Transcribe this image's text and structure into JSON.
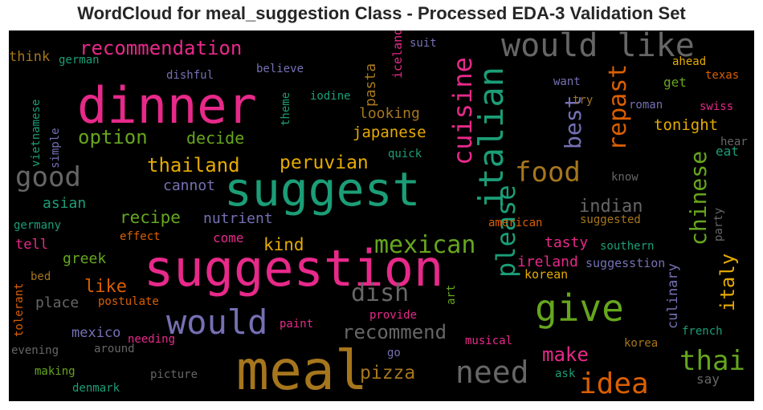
{
  "chart_data": {
    "type": "wordcloud",
    "title": "WordCloud for meal_suggestion Class - Processed EDA-3 Validation Set",
    "background": "#000000",
    "words": [
      {
        "text": "meal",
        "color": "#a6761d",
        "weight": 1.0
      },
      {
        "text": "suggestion",
        "color": "#e7298a",
        "weight": 0.95
      },
      {
        "text": "suggest",
        "color": "#1b9e77",
        "weight": 0.9
      },
      {
        "text": "dinner",
        "color": "#e7298a",
        "weight": 0.88
      },
      {
        "text": "would like",
        "color": "#666666",
        "weight": 0.6
      },
      {
        "text": "give",
        "color": "#66a61e",
        "weight": 0.7
      },
      {
        "text": "would",
        "color": "#7570b3",
        "weight": 0.62
      },
      {
        "text": "need",
        "color": "#666666",
        "weight": 0.55
      },
      {
        "text": "italian",
        "color": "#1b9e77",
        "weight": 0.55
      },
      {
        "text": "good",
        "color": "#666666",
        "weight": 0.5
      },
      {
        "text": "food",
        "color": "#a6761d",
        "weight": 0.48
      },
      {
        "text": "idea",
        "color": "#d95f02",
        "weight": 0.48
      },
      {
        "text": "thai",
        "color": "#66a61e",
        "weight": 0.48
      },
      {
        "text": "cuisine",
        "color": "#e7298a",
        "weight": 0.45
      },
      {
        "text": "please",
        "color": "#1b9e77",
        "weight": 0.45
      },
      {
        "text": "mexican",
        "color": "#66a61e",
        "weight": 0.42
      },
      {
        "text": "dish",
        "color": "#666666",
        "weight": 0.42
      },
      {
        "text": "repast",
        "color": "#d95f02",
        "weight": 0.4
      },
      {
        "text": "chinese",
        "color": "#66a61e",
        "weight": 0.38
      },
      {
        "text": "best",
        "color": "#7570b3",
        "weight": 0.38
      },
      {
        "text": "recommendation",
        "color": "#e7298a",
        "weight": 0.36
      },
      {
        "text": "option",
        "color": "#66a61e",
        "weight": 0.34
      },
      {
        "text": "thailand",
        "color": "#e6ab02",
        "weight": 0.32
      },
      {
        "text": "peruvian",
        "color": "#e6ab02",
        "weight": 0.3
      },
      {
        "text": "recommend",
        "color": "#666666",
        "weight": 0.3
      },
      {
        "text": "make",
        "color": "#e7298a",
        "weight": 0.32
      },
      {
        "text": "pizza",
        "color": "#a6761d",
        "weight": 0.3
      },
      {
        "text": "italy",
        "color": "#e6ab02",
        "weight": 0.3
      },
      {
        "text": "indian",
        "color": "#666666",
        "weight": 0.28
      },
      {
        "text": "like",
        "color": "#d95f02",
        "weight": 0.28
      },
      {
        "text": "recipe",
        "color": "#66a61e",
        "weight": 0.26
      },
      {
        "text": "kind",
        "color": "#e6ab02",
        "weight": 0.26
      },
      {
        "text": "decide",
        "color": "#66a61e",
        "weight": 0.24
      },
      {
        "text": "tonight",
        "color": "#e6ab02",
        "weight": 0.24
      },
      {
        "text": "japanese",
        "color": "#e6ab02",
        "weight": 0.22
      },
      {
        "text": "looking",
        "color": "#a6761d",
        "weight": 0.22
      },
      {
        "text": "pasta",
        "color": "#a6761d",
        "weight": 0.22
      },
      {
        "text": "asian",
        "color": "#1b9e77",
        "weight": 0.2
      },
      {
        "text": "cannot",
        "color": "#7570b3",
        "weight": 0.2
      },
      {
        "text": "nutrient",
        "color": "#7570b3",
        "weight": 0.2
      },
      {
        "text": "tasty",
        "color": "#e7298a",
        "weight": 0.2
      },
      {
        "text": "ireland",
        "color": "#e7298a",
        "weight": 0.2
      },
      {
        "text": "greek",
        "color": "#66a61e",
        "weight": 0.2
      },
      {
        "text": "place",
        "color": "#666666",
        "weight": 0.2
      },
      {
        "text": "mexico",
        "color": "#7570b3",
        "weight": 0.2
      },
      {
        "text": "culinary",
        "color": "#7570b3",
        "weight": 0.2
      },
      {
        "text": "think",
        "color": "#a6761d",
        "weight": 0.18
      },
      {
        "text": "tell",
        "color": "#e7298a",
        "weight": 0.18
      },
      {
        "text": "come",
        "color": "#e7298a",
        "weight": 0.18
      },
      {
        "text": "get",
        "color": "#66a61e",
        "weight": 0.18
      },
      {
        "text": "eat",
        "color": "#1b9e77",
        "weight": 0.18
      },
      {
        "text": "say",
        "color": "#666666",
        "weight": 0.18
      },
      {
        "text": "korean",
        "color": "#e6ab02",
        "weight": 0.16
      },
      {
        "text": "suggesstion",
        "color": "#7570b3",
        "weight": 0.16
      },
      {
        "text": "iceland",
        "color": "#e7298a",
        "weight": 0.16
      },
      {
        "text": "german",
        "color": "#1b9e77",
        "weight": 0.15
      },
      {
        "text": "dishful",
        "color": "#7570b3",
        "weight": 0.15
      },
      {
        "text": "believe",
        "color": "#7570b3",
        "weight": 0.15
      },
      {
        "text": "iodine",
        "color": "#1b9e77",
        "weight": 0.15
      },
      {
        "text": "theme",
        "color": "#1b9e77",
        "weight": 0.15
      },
      {
        "text": "vietnamese",
        "color": "#1b9e77",
        "weight": 0.15
      },
      {
        "text": "simple",
        "color": "#7570b3",
        "weight": 0.15
      },
      {
        "text": "suit",
        "color": "#7570b3",
        "weight": 0.15
      },
      {
        "text": "want",
        "color": "#7570b3",
        "weight": 0.15
      },
      {
        "text": "try",
        "color": "#a6761d",
        "weight": 0.15
      },
      {
        "text": "roman",
        "color": "#7570b3",
        "weight": 0.15
      },
      {
        "text": "swiss",
        "color": "#e7298a",
        "weight": 0.15
      },
      {
        "text": "ahead",
        "color": "#e6ab02",
        "weight": 0.15
      },
      {
        "text": "texas",
        "color": "#d95f02",
        "weight": 0.15
      },
      {
        "text": "quick",
        "color": "#1b9e77",
        "weight": 0.15
      },
      {
        "text": "know",
        "color": "#666666",
        "weight": 0.15
      },
      {
        "text": "hear",
        "color": "#666666",
        "weight": 0.15
      },
      {
        "text": "american",
        "color": "#d95f02",
        "weight": 0.15
      },
      {
        "text": "suggested",
        "color": "#a6761d",
        "weight": 0.15
      },
      {
        "text": "party",
        "color": "#666666",
        "weight": 0.15
      },
      {
        "text": "southern",
        "color": "#1b9e77",
        "weight": 0.15
      },
      {
        "text": "germany",
        "color": "#1b9e77",
        "weight": 0.15
      },
      {
        "text": "effect",
        "color": "#d95f02",
        "weight": 0.15
      },
      {
        "text": "bed",
        "color": "#a6761d",
        "weight": 0.15
      },
      {
        "text": "tolerant",
        "color": "#d95f02",
        "weight": 0.15
      },
      {
        "text": "postulate",
        "color": "#d95f02",
        "weight": 0.15
      },
      {
        "text": "art",
        "color": "#66a61e",
        "weight": 0.15
      },
      {
        "text": "provide",
        "color": "#e7298a",
        "weight": 0.15
      },
      {
        "text": "paint",
        "color": "#e7298a",
        "weight": 0.15
      },
      {
        "text": "needing",
        "color": "#e7298a",
        "weight": 0.15
      },
      {
        "text": "evening",
        "color": "#666666",
        "weight": 0.15
      },
      {
        "text": "around",
        "color": "#666666",
        "weight": 0.15
      },
      {
        "text": "making",
        "color": "#66a61e",
        "weight": 0.15
      },
      {
        "text": "denmark",
        "color": "#1b9e77",
        "weight": 0.15
      },
      {
        "text": "picture",
        "color": "#666666",
        "weight": 0.15
      },
      {
        "text": "musical",
        "color": "#e7298a",
        "weight": 0.15
      },
      {
        "text": "go",
        "color": "#7570b3",
        "weight": 0.15
      },
      {
        "text": "ask",
        "color": "#1b9e77",
        "weight": 0.15
      },
      {
        "text": "korea",
        "color": "#a6761d",
        "weight": 0.15
      },
      {
        "text": "french",
        "color": "#1b9e77",
        "weight": 0.15
      }
    ]
  }
}
